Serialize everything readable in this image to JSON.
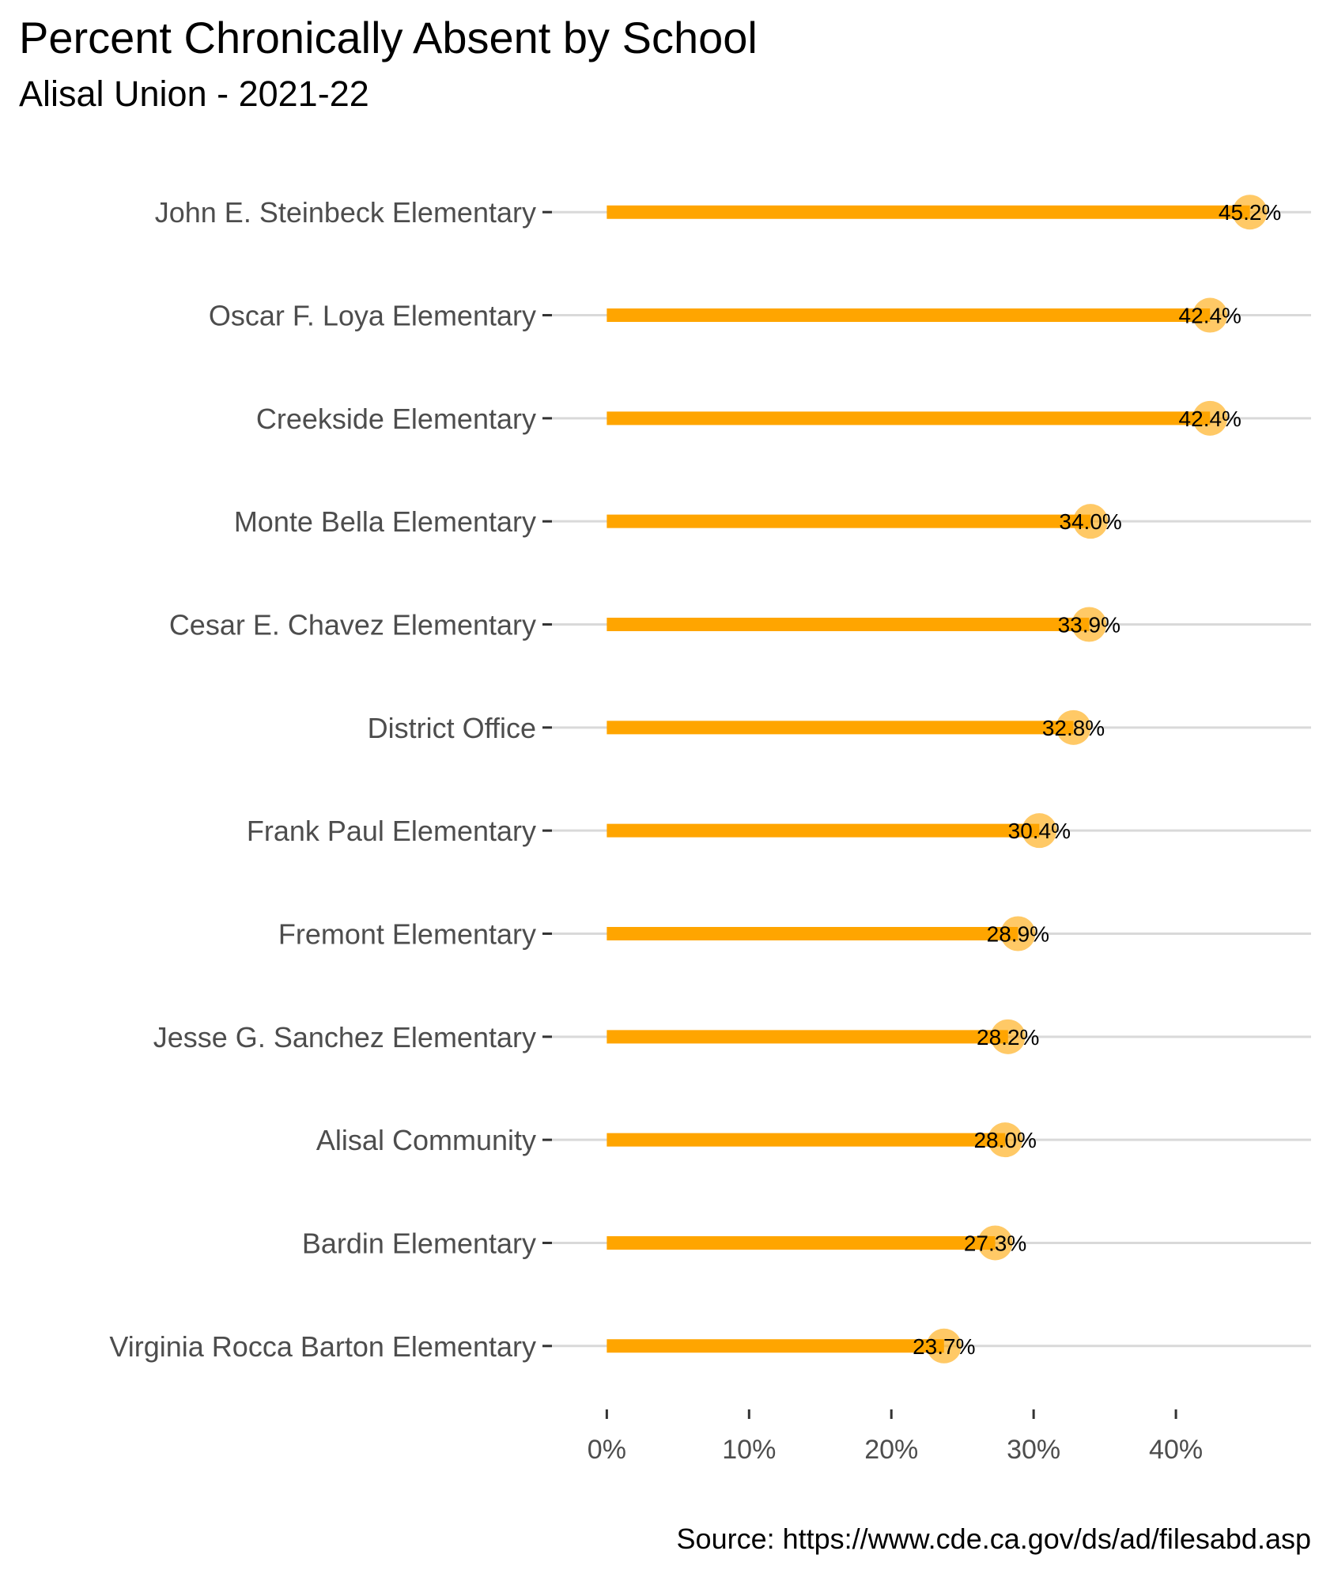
{
  "chart_data": {
    "type": "bar",
    "title": "Percent Chronically Absent by School",
    "subtitle": "Alisal Union - 2021-22",
    "caption": "Source: https://www.cde.ca.gov/ds/ad/filesabd.asp",
    "xlabel": "",
    "ylabel": "",
    "orientation": "horizontal",
    "style": "lollipop",
    "categories": [
      "John E. Steinbeck Elementary",
      "Oscar F. Loya Elementary",
      "Creekside Elementary",
      "Monte Bella Elementary",
      "Cesar E. Chavez Elementary",
      "District Office",
      "Frank Paul Elementary",
      "Fremont Elementary",
      "Jesse G. Sanchez Elementary",
      "Alisal Community",
      "Bardin Elementary",
      "Virginia Rocca Barton Elementary"
    ],
    "values": [
      45.2,
      42.4,
      42.4,
      34.0,
      33.9,
      32.8,
      30.4,
      28.9,
      28.2,
      28.0,
      27.3,
      23.7
    ],
    "value_labels": [
      "45.2%",
      "42.4%",
      "42.4%",
      "34.0%",
      "33.9%",
      "32.8%",
      "30.4%",
      "28.9%",
      "28.2%",
      "28.0%",
      "27.3%",
      "23.7%"
    ],
    "x_ticks": [
      0,
      10,
      20,
      30,
      40
    ],
    "x_tick_labels": [
      "0%",
      "10%",
      "20%",
      "30%",
      "40%"
    ],
    "xlim": [
      -4.3,
      49.5
    ],
    "grid": "horizontal major only",
    "legend": "none",
    "colors": {
      "bar": "#FFA500",
      "point": "#FFA500",
      "gridline": "#d9d9d9",
      "axis_text": "#4d4d4d",
      "label_text": "#000000"
    }
  }
}
